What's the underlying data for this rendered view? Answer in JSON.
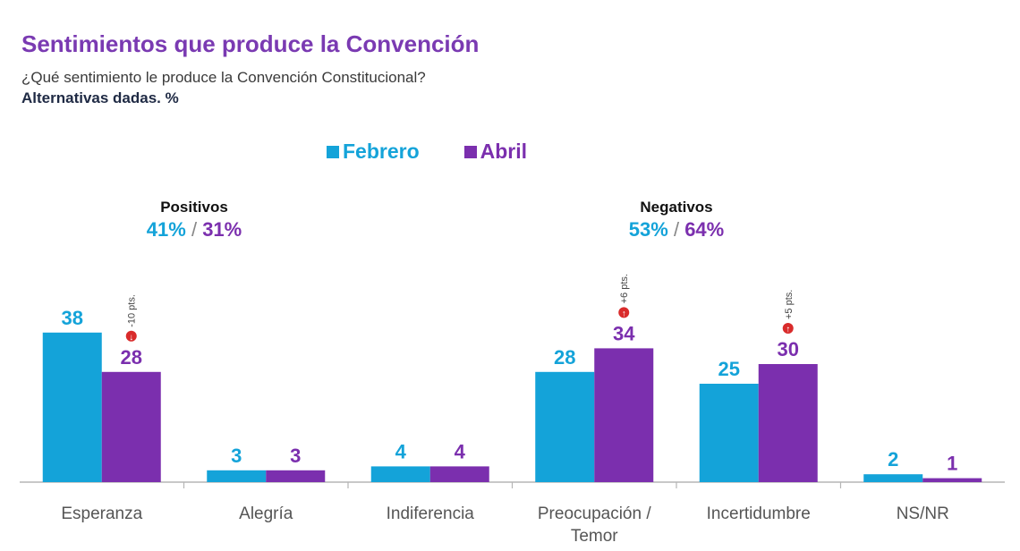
{
  "title": "Sentimientos que produce la Convención",
  "subtitle": "¿Qué sentimiento le produce la Convención Constitucional?",
  "note": "Alternativas dadas. %",
  "colors": {
    "febrero": "#14a3d9",
    "abril": "#7b2fae",
    "up": "#d92b2b",
    "down": "#d92b2b"
  },
  "legend": [
    {
      "label": "Febrero",
      "color": "#14a3d9"
    },
    {
      "label": "Abril",
      "color": "#7b2fae"
    }
  ],
  "groups": [
    {
      "title": "Positivos",
      "febrero": "41%",
      "separator": "/",
      "abril": "31%"
    },
    {
      "title": "Negativos",
      "febrero": "53%",
      "separator": "/",
      "abril": "64%"
    }
  ],
  "chart_data": {
    "type": "bar",
    "categories": [
      [
        "Esperanza"
      ],
      [
        "Alegría"
      ],
      [
        "Indiferencia"
      ],
      [
        "Preocupación /",
        "Temor"
      ],
      [
        "Incertidumbre"
      ],
      [
        "NS/NR"
      ]
    ],
    "series": [
      {
        "name": "Febrero",
        "values": [
          38,
          3,
          4,
          28,
          25,
          2
        ]
      },
      {
        "name": "Abril",
        "values": [
          28,
          3,
          4,
          34,
          30,
          1
        ]
      }
    ],
    "annotations": [
      {
        "category_index": 0,
        "text": "-10 pts.",
        "direction": "down"
      },
      {
        "category_index": 3,
        "text": "+6 pts.",
        "direction": "up"
      },
      {
        "category_index": 4,
        "text": "+5 pts.",
        "direction": "up"
      }
    ],
    "ylim": [
      0,
      40
    ],
    "grid": false
  }
}
